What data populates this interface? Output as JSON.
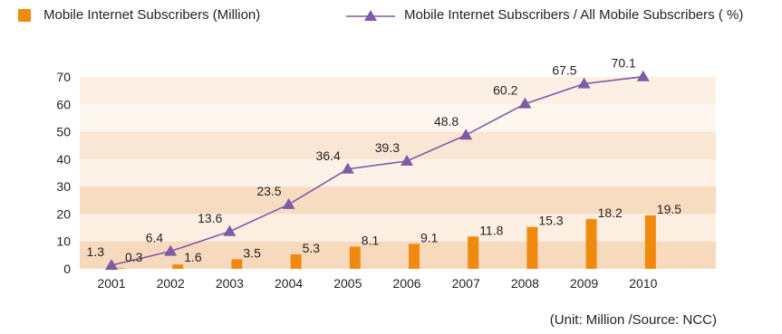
{
  "colors": {
    "bar": "#f08a0f",
    "line": "#7e5ba6",
    "band_dark": "#f7d9bd",
    "band_light": "#fdefe2"
  },
  "legend": {
    "bar_label": "Mobile Internet Subscribers (Million)",
    "line_label": "Mobile Internet Subscribers / All Mobile Subscribers ( %)"
  },
  "note": "(Unit: Million /Source: NCC)",
  "chart_data": {
    "type": "bar+line",
    "categories": [
      "2001",
      "2002",
      "2003",
      "2004",
      "2005",
      "2006",
      "2007",
      "2008",
      "2009",
      "2010"
    ],
    "series": [
      {
        "name": "Mobile Internet Subscribers (Million)",
        "type": "bar",
        "values": [
          0.3,
          1.6,
          3.5,
          5.3,
          8.1,
          9.1,
          11.8,
          15.3,
          18.2,
          19.5
        ]
      },
      {
        "name": "Mobile Internet Subscribers / All Mobile Subscribers ( %)",
        "type": "line",
        "values": [
          1.3,
          6.4,
          13.6,
          23.5,
          36.4,
          39.3,
          48.8,
          60.2,
          67.5,
          70.1
        ]
      }
    ],
    "ylim": [
      0,
      70
    ],
    "yticks": [
      "0",
      "10",
      "20",
      "30",
      "40",
      "50",
      "60",
      "70"
    ],
    "grid": false,
    "legend_position": "top"
  }
}
